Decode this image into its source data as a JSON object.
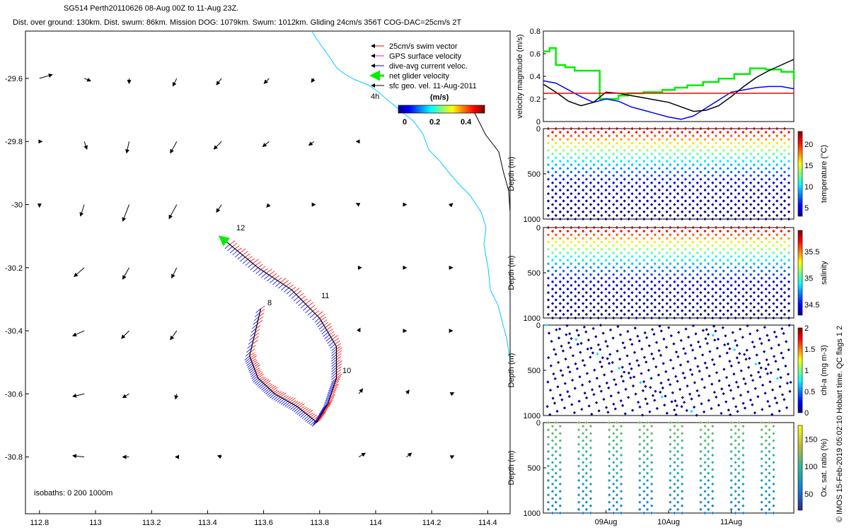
{
  "header": {
    "line1": "SG514 Perth20110626  08-Aug 00Z to 11-Aug 23Z.",
    "line2": "Dist. over ground: 130km. Dist. swum: 86km. Mission DOG: 1079km. Swum: 1012km. Gliding 24cm/s 356T COG-DAC=25cm/s 2T"
  },
  "credit": "© IMOS 15-Feb-2019 05:02:10 Hobart time. QC flags 1  2",
  "chart_data": [
    {
      "type": "scatter",
      "name": "track_map",
      "xlim": [
        112.75,
        114.48
      ],
      "ylim": [
        -30.98,
        -29.45
      ],
      "x_ticks": [
        "112.8",
        "113",
        "113.2",
        "113.4",
        "113.6",
        "113.8",
        "114",
        "114.2",
        "114.4"
      ],
      "y_ticks": [
        "-29.6",
        "-29.8",
        "-30",
        "-30.2",
        "-30.4",
        "-30.6",
        "-30.8"
      ],
      "legend": [
        {
          "label": "25cm/s swim vector",
          "color": "#ff0000"
        },
        {
          "label": "GPS surface velocity",
          "color": "#ff00ff"
        },
        {
          "label": "dive-avg current veloc.",
          "color": "#0000ff"
        },
        {
          "label": "net glider velocity",
          "color": "#00ee00"
        },
        {
          "label": "sfc geo. vel. 11-Aug-2011",
          "color": "#000000"
        }
      ],
      "colorbar": {
        "label": "(m/s)",
        "ticks": [
          "0",
          "0.2",
          "0.4"
        ],
        "range": [
          0,
          0.5
        ]
      },
      "isobaths_label": "isobaths: 0   200  1000m",
      "annotations": [
        "4h",
        "8",
        "10",
        "11",
        "12"
      ],
      "track": [
        {
          "lon": 113.59,
          "lat": -30.33
        },
        {
          "lon": 113.55,
          "lat": -30.48
        },
        {
          "lon": 113.58,
          "lat": -30.55
        },
        {
          "lon": 113.64,
          "lat": -30.6
        },
        {
          "lon": 113.72,
          "lat": -30.64
        },
        {
          "lon": 113.79,
          "lat": -30.69
        },
        {
          "lon": 113.83,
          "lat": -30.63
        },
        {
          "lon": 113.86,
          "lat": -30.55
        },
        {
          "lon": 113.86,
          "lat": -30.45
        },
        {
          "lon": 113.8,
          "lat": -30.36
        },
        {
          "lon": 113.7,
          "lat": -30.27
        },
        {
          "lon": 113.58,
          "lat": -30.2
        },
        {
          "lon": 113.47,
          "lat": -30.12
        }
      ],
      "geo_vectors": [
        {
          "lon": 112.8,
          "lat": -29.6,
          "u": 0.1,
          "v": 0.03
        },
        {
          "lon": 112.96,
          "lat": -29.6,
          "u": 0.05,
          "v": -0.02
        },
        {
          "lon": 113.12,
          "lat": -29.6,
          "u": 0.0,
          "v": -0.04
        },
        {
          "lon": 113.29,
          "lat": -29.6,
          "u": -0.03,
          "v": -0.06
        },
        {
          "lon": 113.45,
          "lat": -29.6,
          "u": -0.04,
          "v": -0.05
        },
        {
          "lon": 113.62,
          "lat": -29.6,
          "u": -0.04,
          "v": -0.04
        },
        {
          "lon": 113.78,
          "lat": -29.6,
          "u": -0.02,
          "v": -0.03
        },
        {
          "lon": 112.8,
          "lat": -29.8,
          "u": 0.02,
          "v": 0.0
        },
        {
          "lon": 112.96,
          "lat": -29.8,
          "u": 0.02,
          "v": -0.06
        },
        {
          "lon": 113.12,
          "lat": -29.8,
          "u": -0.02,
          "v": -0.09
        },
        {
          "lon": 113.29,
          "lat": -29.8,
          "u": -0.05,
          "v": -0.09
        },
        {
          "lon": 113.45,
          "lat": -29.8,
          "u": -0.06,
          "v": -0.06
        },
        {
          "lon": 113.62,
          "lat": -29.8,
          "u": -0.05,
          "v": -0.04
        },
        {
          "lon": 113.78,
          "lat": -29.8,
          "u": -0.04,
          "v": -0.03
        },
        {
          "lon": 113.94,
          "lat": -29.8,
          "u": -0.02,
          "v": 0.0
        },
        {
          "lon": 112.8,
          "lat": -30.0,
          "u": 0.0,
          "v": -0.02
        },
        {
          "lon": 112.96,
          "lat": -30.0,
          "u": -0.03,
          "v": -0.09
        },
        {
          "lon": 113.12,
          "lat": -30.0,
          "u": -0.05,
          "v": -0.13
        },
        {
          "lon": 113.29,
          "lat": -30.0,
          "u": -0.06,
          "v": -0.11
        },
        {
          "lon": 113.45,
          "lat": -30.0,
          "u": -0.04,
          "v": -0.06
        },
        {
          "lon": 113.62,
          "lat": -30.0,
          "u": -0.02,
          "v": -0.02
        },
        {
          "lon": 113.78,
          "lat": -30.0,
          "u": 0.01,
          "v": 0.0
        },
        {
          "lon": 113.94,
          "lat": -30.0,
          "u": -0.02,
          "v": 0.01
        },
        {
          "lon": 114.11,
          "lat": -30.0,
          "u": 0.0,
          "v": 0.0
        },
        {
          "lon": 114.27,
          "lat": -30.0,
          "u": 0.01,
          "v": 0.01
        },
        {
          "lon": 112.96,
          "lat": -30.2,
          "u": -0.08,
          "v": -0.07
        },
        {
          "lon": 113.12,
          "lat": -30.2,
          "u": -0.05,
          "v": -0.09
        },
        {
          "lon": 113.29,
          "lat": -30.2,
          "u": -0.04,
          "v": -0.08
        },
        {
          "lon": 113.94,
          "lat": -30.2,
          "u": 0.02,
          "v": 0.0
        },
        {
          "lon": 114.11,
          "lat": -30.2,
          "u": 0.0,
          "v": 0.0
        },
        {
          "lon": 114.27,
          "lat": -30.2,
          "u": 0.01,
          "v": 0.0
        },
        {
          "lon": 112.96,
          "lat": -30.4,
          "u": -0.09,
          "v": -0.04
        },
        {
          "lon": 113.12,
          "lat": -30.4,
          "u": -0.06,
          "v": -0.06
        },
        {
          "lon": 113.29,
          "lat": -30.4,
          "u": -0.05,
          "v": -0.07
        },
        {
          "lon": 113.94,
          "lat": -30.4,
          "u": 0.01,
          "v": 0.02
        },
        {
          "lon": 114.11,
          "lat": -30.4,
          "u": 0.0,
          "v": 0.0
        },
        {
          "lon": 114.27,
          "lat": -30.4,
          "u": 0.01,
          "v": 0.0
        },
        {
          "lon": 112.96,
          "lat": -30.6,
          "u": -0.09,
          "v": -0.02
        },
        {
          "lon": 113.12,
          "lat": -30.6,
          "u": -0.05,
          "v": -0.03
        },
        {
          "lon": 113.29,
          "lat": -30.6,
          "u": -0.01,
          "v": -0.04
        },
        {
          "lon": 113.94,
          "lat": -30.6,
          "u": 0.03,
          "v": 0.04
        },
        {
          "lon": 114.11,
          "lat": -30.6,
          "u": 0.02,
          "v": 0.03
        },
        {
          "lon": 114.27,
          "lat": -30.6,
          "u": 0.02,
          "v": 0.01
        },
        {
          "lon": 112.96,
          "lat": -30.8,
          "u": -0.09,
          "v": 0.01
        },
        {
          "lon": 113.12,
          "lat": -30.8,
          "u": -0.05,
          "v": 0.0
        },
        {
          "lon": 113.29,
          "lat": -30.8,
          "u": -0.01,
          "v": 0.0
        },
        {
          "lon": 113.45,
          "lat": -30.8,
          "u": -0.03,
          "v": 0.01
        },
        {
          "lon": 113.94,
          "lat": -30.8,
          "u": 0.05,
          "v": 0.03
        },
        {
          "lon": 114.11,
          "lat": -30.8,
          "u": 0.04,
          "v": 0.03
        },
        {
          "lon": 114.27,
          "lat": -30.8,
          "u": 0.02,
          "v": 0.01
        }
      ]
    },
    {
      "type": "line",
      "name": "velocity_timeseries",
      "ylabel": "velocity magnitude (m/s)",
      "ylim": [
        0,
        0.8
      ],
      "y_ticks": [
        "0",
        "0.2",
        "0.4",
        "0.6",
        "0.8"
      ],
      "x_day_range": [
        0,
        4
      ],
      "series": [
        {
          "name": "net glider velocity",
          "color": "#00ee00",
          "x": [
            0.0,
            0.1,
            0.2,
            0.35,
            0.5,
            0.7,
            0.9,
            1.05,
            1.2,
            1.35,
            1.6,
            1.9,
            2.1,
            2.3,
            2.55,
            2.8,
            3.05,
            3.3,
            3.55,
            3.8,
            4.0
          ],
          "values": [
            0.62,
            0.65,
            0.5,
            0.48,
            0.45,
            0.45,
            0.2,
            0.2,
            0.23,
            0.25,
            0.26,
            0.28,
            0.3,
            0.32,
            0.35,
            0.38,
            0.42,
            0.47,
            0.46,
            0.44,
            0.36
          ]
        },
        {
          "name": "dive-avg current veloc.",
          "color": "#0000ff",
          "x": [
            0.0,
            0.2,
            0.4,
            0.6,
            0.8,
            1.0,
            1.2,
            1.4,
            1.6,
            1.8,
            2.0,
            2.2,
            2.4,
            2.6,
            2.8,
            3.0,
            3.2,
            3.4,
            3.6,
            3.8,
            4.0
          ],
          "values": [
            0.36,
            0.34,
            0.28,
            0.22,
            0.17,
            0.2,
            0.18,
            0.13,
            0.1,
            0.07,
            0.04,
            0.02,
            0.05,
            0.12,
            0.19,
            0.26,
            0.28,
            0.3,
            0.31,
            0.31,
            0.29
          ]
        },
        {
          "name": "sfc geo. vel.",
          "color": "#000000",
          "x": [
            0.0,
            0.2,
            0.4,
            0.6,
            0.8,
            1.0,
            1.2,
            1.4,
            1.6,
            1.8,
            2.0,
            2.2,
            2.4,
            2.6,
            2.8,
            3.0,
            3.2,
            3.4,
            3.6,
            3.8,
            4.0
          ],
          "values": [
            0.33,
            0.26,
            0.18,
            0.14,
            0.17,
            0.26,
            0.25,
            0.23,
            0.21,
            0.19,
            0.17,
            0.13,
            0.09,
            0.1,
            0.14,
            0.22,
            0.31,
            0.39,
            0.45,
            0.5,
            0.55
          ]
        },
        {
          "name": "swim speed",
          "color": "#ff0000",
          "x": [
            0,
            4
          ],
          "values": [
            0.25,
            0.25
          ]
        }
      ]
    },
    {
      "type": "scatter",
      "name": "temperature_section",
      "ylabel": "Depth (m)",
      "colorbar_label": "temperature (°C)",
      "ylim": [
        1000,
        0
      ],
      "y_ticks": [
        "0",
        "500",
        "1000"
      ],
      "colorbar_ticks": [
        "5",
        "10",
        "15",
        "20"
      ],
      "colorbar_range": [
        3,
        23
      ],
      "profiles": 32,
      "max_depth": 1000
    },
    {
      "type": "scatter",
      "name": "salinity_section",
      "ylabel": "Depth (m)",
      "colorbar_label": "salinity",
      "ylim": [
        1000,
        0
      ],
      "y_ticks": [
        "0",
        "500",
        "1000"
      ],
      "colorbar_ticks": [
        "34.5",
        "35",
        "35.5"
      ],
      "colorbar_range": [
        34.3,
        35.9
      ],
      "profiles": 32,
      "max_depth": 1000
    },
    {
      "type": "scatter",
      "name": "chla_section",
      "ylabel": "Depth (m)",
      "colorbar_label": "chl-a (mg m-3)",
      "ylim": [
        1000,
        0
      ],
      "y_ticks": [
        "0",
        "500",
        "1000"
      ],
      "colorbar_ticks": [
        "0",
        "0.5",
        "1",
        "1.5",
        "2"
      ],
      "colorbar_range": [
        0,
        2
      ],
      "profiles": 32,
      "max_depth": 1000
    },
    {
      "type": "scatter",
      "name": "oxygen_section",
      "ylabel": "Depth (m)",
      "colorbar_label": "Ox. sat. ratio (%)",
      "ylim": [
        1000,
        0
      ],
      "y_ticks": [
        "0",
        "500",
        "1000"
      ],
      "x_ticks": [
        "09Aug",
        "10Aug",
        "11Aug"
      ],
      "colorbar_ticks": [
        "50",
        "100",
        "150"
      ],
      "colorbar_range": [
        20,
        175
      ],
      "profiles": 32,
      "max_depth": 1000
    }
  ]
}
